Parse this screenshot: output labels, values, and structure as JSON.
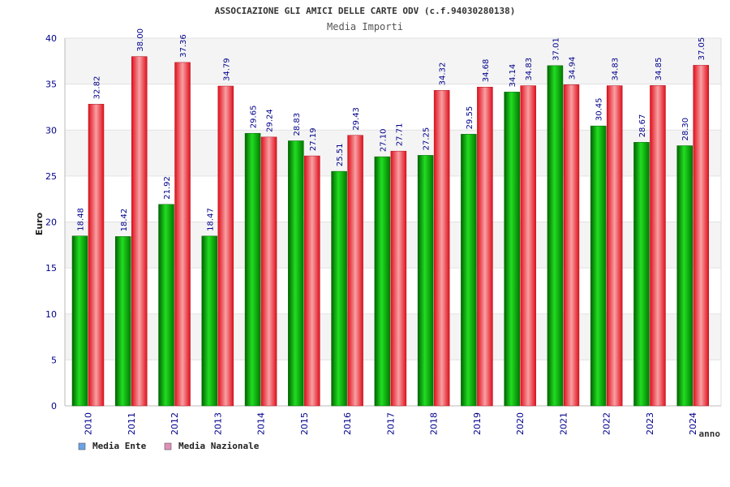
{
  "chart_data": {
    "type": "bar",
    "title": "ASSOCIAZIONE GLI AMICI DELLE CARTE ODV (c.f.94030280138)",
    "subtitle": "Media Importi",
    "xlabel": "anno",
    "ylabel": "Euro",
    "ylim": [
      0,
      40
    ],
    "yticks": [
      "0",
      "5",
      "10",
      "15",
      "20",
      "25",
      "30",
      "35",
      "40"
    ],
    "grid": true,
    "legend_position": "bottom-left",
    "categories": [
      "2010",
      "2011",
      "2012",
      "2013",
      "2014",
      "2015",
      "2016",
      "2017",
      "2018",
      "2019",
      "2020",
      "2021",
      "2022",
      "2023",
      "2024"
    ],
    "series": [
      {
        "name": "Media Ente",
        "color": "#00a000",
        "values": [
          18.48,
          18.42,
          21.92,
          18.47,
          29.65,
          28.83,
          25.51,
          27.1,
          27.25,
          29.55,
          34.14,
          37.01,
          30.45,
          28.67,
          28.3
        ],
        "labels": [
          "18.48",
          "18.42",
          "21.92",
          "18.47",
          "29.65",
          "28.83",
          "25.51",
          "27.10",
          "27.25",
          "29.55",
          "34.14",
          "37.01",
          "30.45",
          "28.67",
          "28.30"
        ]
      },
      {
        "name": "Media Nazionale",
        "color": "#e8323c",
        "values": [
          32.82,
          38.0,
          37.36,
          34.79,
          29.24,
          27.19,
          29.43,
          27.71,
          34.32,
          34.68,
          34.83,
          34.94,
          34.83,
          34.85,
          37.05
        ],
        "labels": [
          "32.82",
          "38.00",
          "37.36",
          "34.79",
          "29.24",
          "27.19",
          "29.43",
          "27.71",
          "34.32",
          "34.68",
          "34.83",
          "34.94",
          "34.83",
          "34.85",
          "37.05"
        ]
      }
    ],
    "legend_swatches": [
      "#6aa3e8",
      "#e090b8"
    ]
  }
}
